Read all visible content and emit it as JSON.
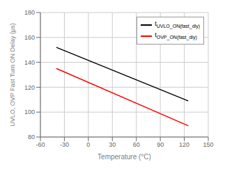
{
  "chart_data": {
    "type": "line",
    "xlabel": "Temperature (°C)",
    "ylabel": "UVLO, OVP Fast Turn ON Delay (μs)",
    "x": [
      -40,
      125
    ],
    "series": [
      {
        "name": "tUVLO_ON(fast_dly)",
        "color": "#000000",
        "values": [
          152,
          109
        ]
      },
      {
        "name": "tOVP_ON(fast_dly)",
        "color": "#ff0000",
        "values": [
          135,
          89
        ]
      }
    ],
    "xlim": [
      -60,
      150
    ],
    "ylim": [
      80,
      180
    ],
    "xticks": [
      -60,
      -30,
      0,
      30,
      60,
      90,
      120,
      150
    ],
    "yticks": [
      80,
      100,
      120,
      140,
      160,
      180
    ],
    "grid": true,
    "legend": "upper right"
  }
}
